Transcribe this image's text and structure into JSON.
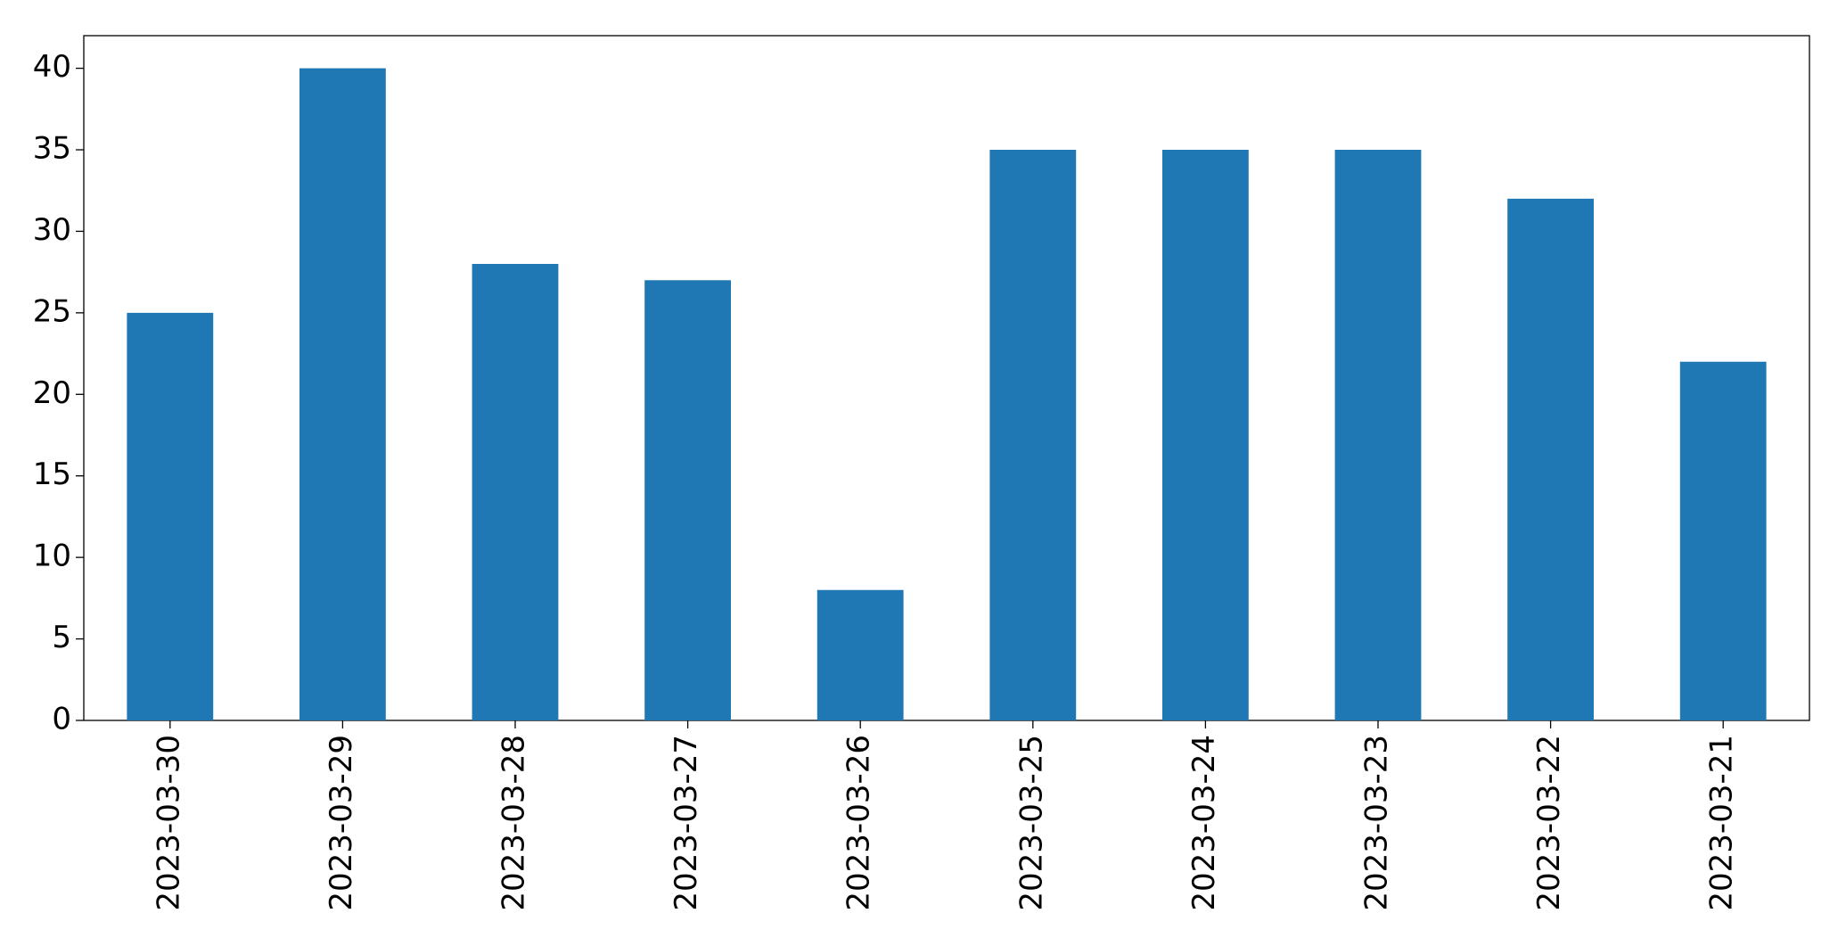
{
  "chart_data": {
    "type": "bar",
    "categories": [
      "2023-03-30",
      "2023-03-29",
      "2023-03-28",
      "2023-03-27",
      "2023-03-26",
      "2023-03-25",
      "2023-03-24",
      "2023-03-23",
      "2023-03-22",
      "2023-03-21"
    ],
    "values": [
      25,
      40,
      28,
      27,
      8,
      35,
      35,
      35,
      32,
      22
    ],
    "color": "#1f77b4",
    "ylim": [
      0,
      42
    ],
    "yticks": [
      0,
      5,
      10,
      15,
      20,
      25,
      30,
      35,
      40
    ],
    "grid": false
  }
}
